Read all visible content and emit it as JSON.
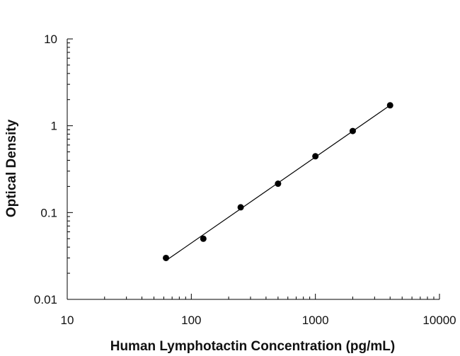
{
  "chart_data": {
    "type": "scatter",
    "title": "",
    "xlabel": "Human Lymphotactin Concentration (pg/mL)",
    "ylabel": "Optical Density",
    "xscale": "log",
    "yscale": "log",
    "xlim": [
      10,
      10000
    ],
    "ylim": [
      0.01,
      10
    ],
    "xticks": [
      "10",
      "100",
      "1000",
      "10000"
    ],
    "yticks": [
      "0.01",
      "0.1",
      "1",
      "10"
    ],
    "grid": false,
    "legend": "none",
    "series": [
      {
        "x": [
          62.5,
          125,
          250,
          500,
          1000,
          2000,
          4000
        ],
        "y": [
          0.03,
          0.05,
          0.115,
          0.215,
          0.445,
          0.87,
          1.72
        ],
        "color": "#000000"
      }
    ],
    "fit_line": {
      "x": [
        62.5,
        4000
      ],
      "y": [
        0.028,
        1.72
      ],
      "color": "#000000"
    }
  }
}
